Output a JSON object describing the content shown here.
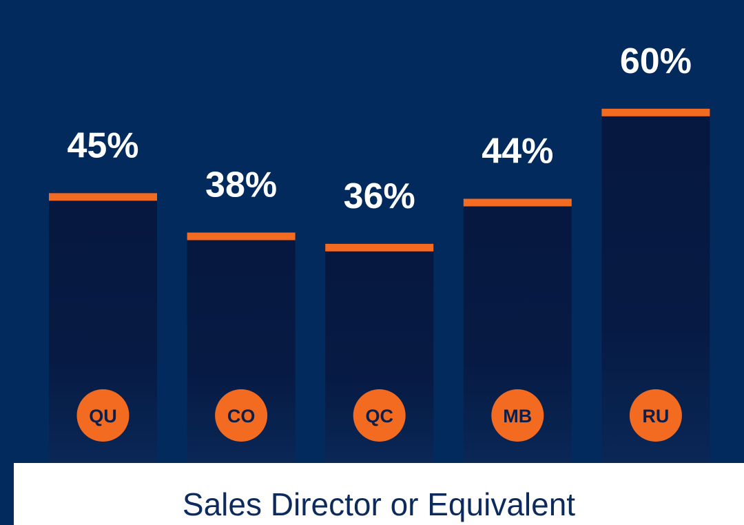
{
  "chart_data": {
    "type": "bar",
    "title": "Sales Director or Equivalent",
    "categories": [
      "QU",
      "CO",
      "QC",
      "MB",
      "RU"
    ],
    "values": [
      45,
      38,
      36,
      44,
      60
    ],
    "value_labels": [
      "45%",
      "38%",
      "36%",
      "44%",
      "60%"
    ],
    "color": "#f26b21"
  }
}
